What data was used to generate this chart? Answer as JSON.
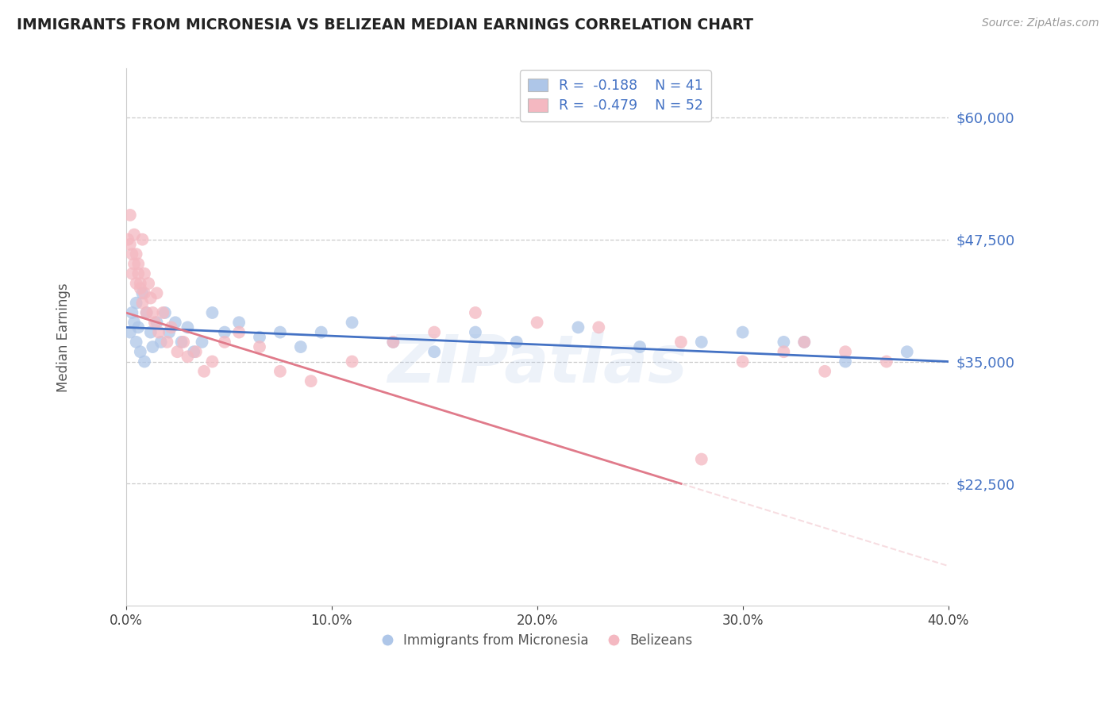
{
  "title": "IMMIGRANTS FROM MICRONESIA VS BELIZEAN MEDIAN EARNINGS CORRELATION CHART",
  "source": "Source: ZipAtlas.com",
  "ylabel": "Median Earnings",
  "xlim": [
    0.0,
    0.4
  ],
  "ylim": [
    10000,
    65000
  ],
  "yticks": [
    22500,
    35000,
    47500,
    60000
  ],
  "ytick_labels": [
    "$22,500",
    "$35,000",
    "$47,500",
    "$60,000"
  ],
  "xticks": [
    0.0,
    0.1,
    0.2,
    0.3,
    0.4
  ],
  "xtick_labels": [
    "0.0%",
    "10.0%",
    "20.0%",
    "30.0%",
    "40.0%"
  ],
  "watermark": "ZIPatlas",
  "background_color": "#ffffff",
  "grid_color": "#cccccc",
  "title_color": "#222222",
  "axis_label_color": "#555555",
  "ytick_color": "#4472c4",
  "micronesia_scatter_color": "#aec6e8",
  "micronesia_line_color": "#4472c4",
  "belizean_scatter_color": "#f4b8c1",
  "belizean_line_color": "#e07a8a",
  "R_mic": -0.188,
  "N_mic": 41,
  "R_bel": -0.479,
  "N_bel": 52,
  "mic_x": [
    0.002,
    0.003,
    0.004,
    0.005,
    0.005,
    0.006,
    0.007,
    0.008,
    0.009,
    0.01,
    0.012,
    0.013,
    0.015,
    0.017,
    0.019,
    0.021,
    0.024,
    0.027,
    0.03,
    0.033,
    0.037,
    0.042,
    0.048,
    0.055,
    0.065,
    0.075,
    0.085,
    0.095,
    0.11,
    0.13,
    0.15,
    0.17,
    0.19,
    0.22,
    0.25,
    0.28,
    0.3,
    0.33,
    0.35,
    0.38,
    0.32
  ],
  "mic_y": [
    38000,
    40000,
    39000,
    37000,
    41000,
    38500,
    36000,
    42000,
    35000,
    40000,
    38000,
    36500,
    39000,
    37000,
    40000,
    38000,
    39000,
    37000,
    38500,
    36000,
    37000,
    40000,
    38000,
    39000,
    37500,
    38000,
    36500,
    38000,
    39000,
    37000,
    36000,
    38000,
    37000,
    38500,
    36500,
    37000,
    38000,
    37000,
    35000,
    36000,
    37000
  ],
  "bel_x": [
    0.001,
    0.002,
    0.002,
    0.003,
    0.003,
    0.004,
    0.004,
    0.005,
    0.005,
    0.006,
    0.006,
    0.007,
    0.007,
    0.008,
    0.008,
    0.009,
    0.009,
    0.01,
    0.011,
    0.012,
    0.013,
    0.014,
    0.015,
    0.016,
    0.018,
    0.02,
    0.022,
    0.025,
    0.028,
    0.03,
    0.034,
    0.038,
    0.042,
    0.048,
    0.055,
    0.065,
    0.075,
    0.09,
    0.11,
    0.13,
    0.15,
    0.17,
    0.2,
    0.23,
    0.27,
    0.3,
    0.32,
    0.33,
    0.34,
    0.35,
    0.37,
    0.28
  ],
  "bel_y": [
    47500,
    50000,
    47000,
    46000,
    44000,
    48000,
    45000,
    46000,
    43000,
    45000,
    44000,
    43000,
    42500,
    47500,
    41000,
    44000,
    42000,
    40000,
    43000,
    41500,
    40000,
    39000,
    42000,
    38000,
    40000,
    37000,
    38500,
    36000,
    37000,
    35500,
    36000,
    34000,
    35000,
    37000,
    38000,
    36500,
    34000,
    33000,
    35000,
    37000,
    38000,
    40000,
    39000,
    38500,
    37000,
    35000,
    36000,
    37000,
    34000,
    36000,
    35000,
    25000
  ]
}
